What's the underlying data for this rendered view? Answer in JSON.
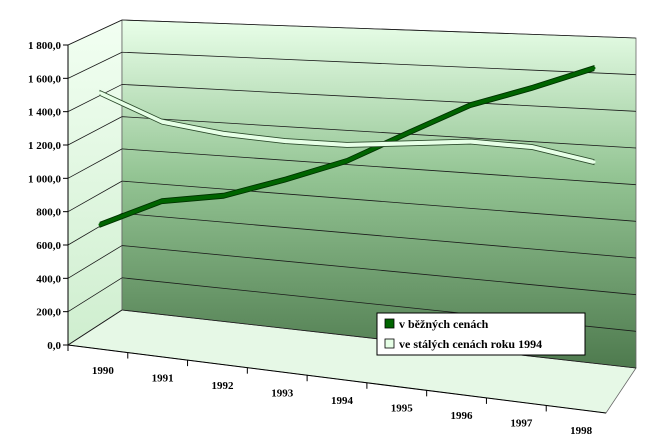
{
  "chart_data": {
    "type": "line",
    "title": "",
    "xlabel": "",
    "ylabel": "",
    "categories": [
      "1990",
      "1991",
      "1992",
      "1993",
      "1994",
      "1995",
      "1996",
      "1997",
      "1998"
    ],
    "ylim": [
      0,
      1800
    ],
    "y_ticks": [
      "0,0",
      "200,0",
      "400,0",
      "600,0",
      "800,0",
      "1 000,0",
      "1 200,0",
      "1 400,0",
      "1 600,0",
      "1 800,0"
    ],
    "grid": true,
    "style": "3d-line",
    "legend_position": "bottom-right",
    "series": [
      {
        "name": "v běžných cenách",
        "color": "#006400",
        "values": [
          590,
          760,
          820,
          940,
          1070,
          1250,
          1420,
          1530,
          1650
        ]
      },
      {
        "name": "ve stálých cenách roku  1994",
        "color": "#e6ffe6",
        "values": [
          1380,
          1230,
          1180,
          1160,
          1160,
          1190,
          1220,
          1210,
          1150
        ]
      }
    ]
  },
  "colors": {
    "wall_top": "#e9ffe9",
    "wall_mid": "#93c493",
    "wall_bottom": "#4e7a4e",
    "floor": "#e6f8e6",
    "grid": "#1a1a1a"
  }
}
